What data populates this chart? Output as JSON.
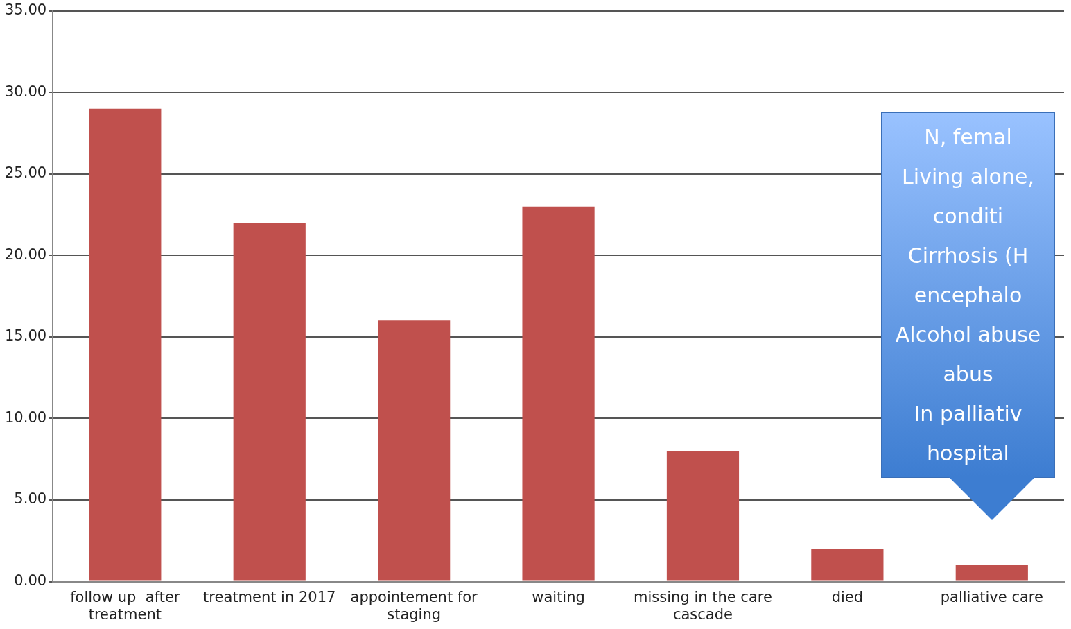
{
  "chart_data": {
    "type": "bar",
    "categories": [
      "follow up  after treatment",
      "treatment in 2017",
      "appointement for staging",
      "waiting",
      "missing in the care cascade",
      "died",
      "palliative care"
    ],
    "values": [
      29,
      22,
      16,
      23,
      8,
      2,
      1
    ],
    "color": "#c0504d",
    "ylim": [
      0,
      35
    ],
    "yticks": [
      {
        "value": 0,
        "label": "0.00"
      },
      {
        "value": 5,
        "label": "5.00"
      },
      {
        "value": 10,
        "label": "10.00"
      },
      {
        "value": 15,
        "label": "15.00"
      },
      {
        "value": 20,
        "label": "20.00"
      },
      {
        "value": 25,
        "label": "25.00"
      },
      {
        "value": 30,
        "label": "30.00"
      },
      {
        "value": 35,
        "label": "35.00"
      }
    ],
    "grid": "y",
    "legend": false,
    "annotations": [
      "N, femal",
      "Living alone,",
      "conditi",
      "Cirrhosis (H",
      "encephalo",
      "Alcohol abuse",
      "abus",
      "In palliativ",
      "hospital"
    ]
  }
}
